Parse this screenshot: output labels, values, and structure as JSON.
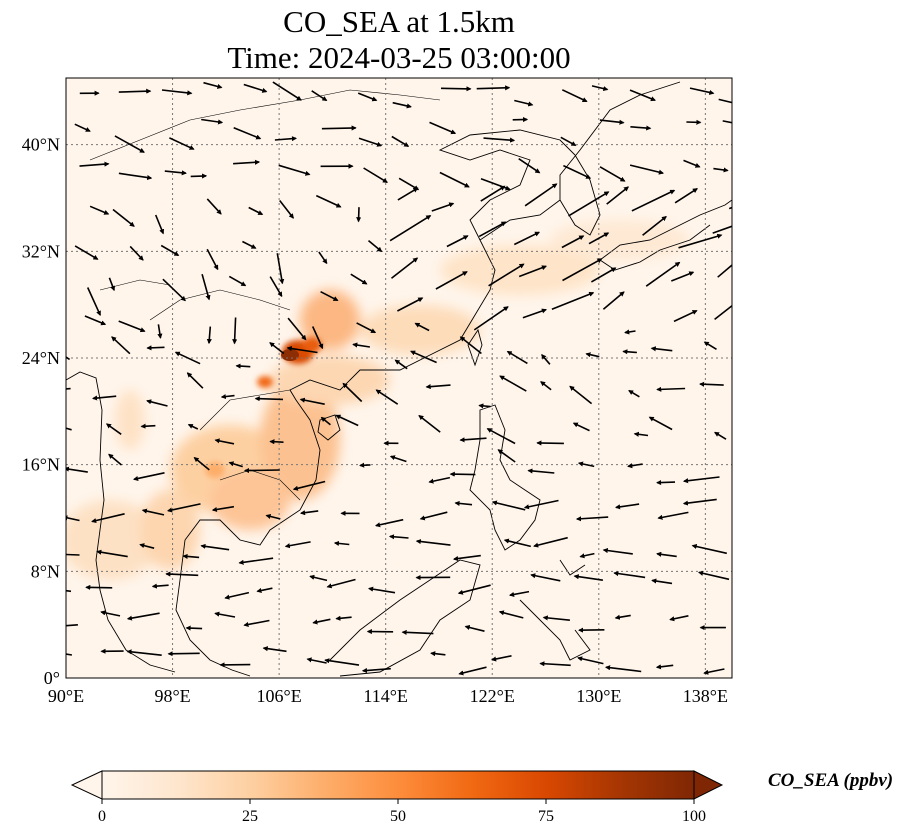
{
  "title": {
    "line1": "CO_SEA at 1.5km",
    "line2": "Time: 2024-03-25 03:00:00"
  },
  "map": {
    "lon_range": [
      90,
      140
    ],
    "lat_range": [
      0,
      45
    ],
    "lon_ticks": [
      {
        "value": 90,
        "label": "90°E"
      },
      {
        "value": 98,
        "label": "98°E"
      },
      {
        "value": 106,
        "label": "106°E"
      },
      {
        "value": 114,
        "label": "114°E"
      },
      {
        "value": 122,
        "label": "122°E"
      },
      {
        "value": 130,
        "label": "130°E"
      },
      {
        "value": 138,
        "label": "138°E"
      }
    ],
    "lat_ticks": [
      {
        "value": 0,
        "label": "0°"
      },
      {
        "value": 8,
        "label": "8°N"
      },
      {
        "value": 16,
        "label": "16°N"
      },
      {
        "value": 24,
        "label": "24°N"
      },
      {
        "value": 32,
        "label": "32°N"
      },
      {
        "value": 40,
        "label": "40°N"
      }
    ],
    "gridlines": true,
    "background_color": "#fff5eb",
    "coast_color": "#000000"
  },
  "colorbar": {
    "label": "CO_SEA (ppbv)",
    "min": 0,
    "max": 100,
    "ticks": [
      {
        "value": 0,
        "label": "0"
      },
      {
        "value": 25,
        "label": "25"
      },
      {
        "value": 50,
        "label": "50"
      },
      {
        "value": 75,
        "label": "75"
      },
      {
        "value": 100,
        "label": "100"
      }
    ],
    "colors": [
      "#fff5eb",
      "#fee6ce",
      "#fdd0a2",
      "#fdae6b",
      "#fd8d3c",
      "#f16913",
      "#d94801",
      "#a63603",
      "#7f2704"
    ],
    "extend": "both"
  }
}
